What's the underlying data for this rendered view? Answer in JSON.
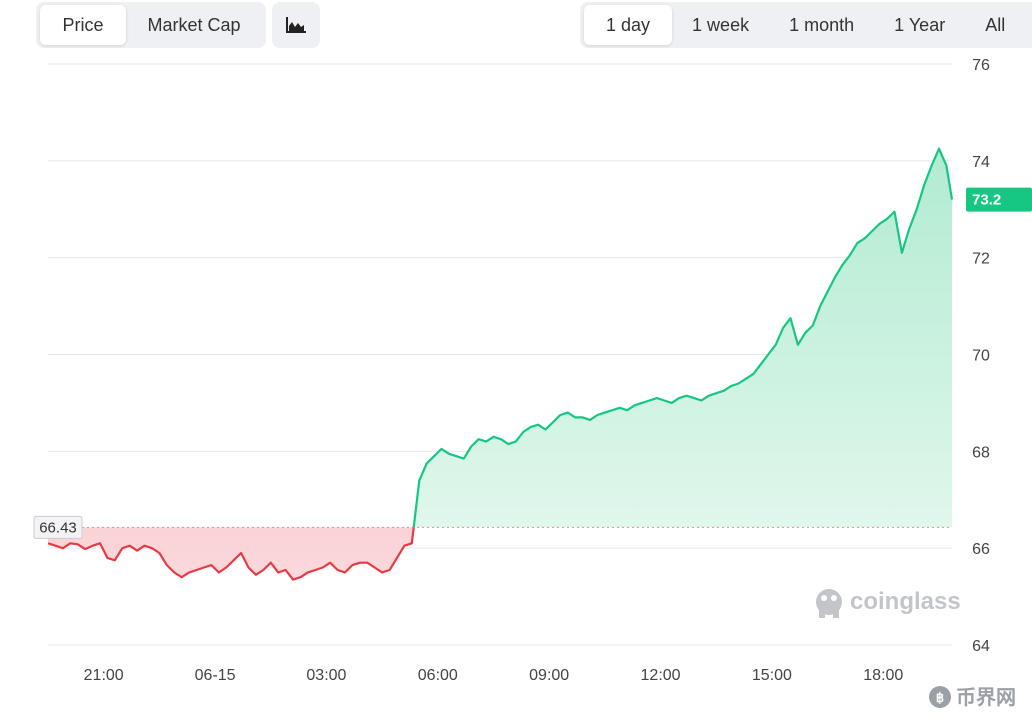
{
  "toolbar": {
    "type_options": [
      "Price",
      "Market Cap"
    ],
    "type_selected": "Price",
    "chart_icon": "area-chart-icon",
    "ranges": [
      "1 day",
      "1 week",
      "1 month",
      "1 Year",
      "All"
    ],
    "range_selected": "1 day"
  },
  "watermark": "coinglass",
  "watermark_icon": "coinglass-logo-icon",
  "corner_logo": "币界网",
  "colors": {
    "up": "#16c784",
    "down": "#ea3943",
    "up_fill": "#cdf3e2",
    "down_fill": "#f7a8ae",
    "grid": "#e6e8eb",
    "baseline": "#e88a90"
  },
  "chart_data": {
    "type": "area",
    "title": "",
    "xlabel": "",
    "ylabel": "",
    "ylim": [
      64,
      76
    ],
    "y_ticks": [
      76,
      74,
      72,
      70,
      68,
      66,
      64
    ],
    "x_ticks": [
      "21:00",
      "06-15",
      "03:00",
      "06:00",
      "09:00",
      "12:00",
      "15:00",
      "18:00"
    ],
    "x_tick_hours": [
      21,
      24,
      27,
      30,
      33,
      36,
      39,
      42
    ],
    "baseline": 66.43,
    "baseline_label": "66.43",
    "last_value": 73.2,
    "last_label": "73.2",
    "grid": true,
    "series": [
      {
        "x": [
          19.5,
          19.7,
          19.9,
          20.1,
          20.3,
          20.5,
          20.7,
          20.9,
          21.1,
          21.3,
          21.5,
          21.7,
          21.9,
          22.1,
          22.3,
          22.5,
          22.7,
          22.9,
          23.1,
          23.3,
          23.5,
          23.7,
          23.9,
          24.1,
          24.3,
          24.5,
          24.7,
          24.9,
          25.1,
          25.3,
          25.5,
          25.7,
          25.9,
          26.1,
          26.3,
          26.5,
          26.7,
          26.9,
          27.1,
          27.3,
          27.5,
          27.7,
          27.9,
          28.1,
          28.3,
          28.5,
          28.7,
          28.9,
          29.1,
          29.3,
          29.5,
          29.7,
          29.9,
          30.1,
          30.3,
          30.5,
          30.7,
          30.9,
          31.1,
          31.3,
          31.5,
          31.7,
          31.9,
          32.1,
          32.3,
          32.5,
          32.7,
          32.9,
          33.1,
          33.3,
          33.5,
          33.7,
          33.9,
          34.1,
          34.3,
          34.5,
          34.7,
          34.9,
          35.1,
          35.3,
          35.5,
          35.7,
          35.9,
          36.1,
          36.3,
          36.5,
          36.7,
          36.9,
          37.1,
          37.3,
          37.5,
          37.7,
          37.9,
          38.1,
          38.3,
          38.5,
          38.7,
          38.9,
          39.1,
          39.3,
          39.5,
          39.7,
          39.9,
          40.1,
          40.3,
          40.5,
          40.7,
          40.9,
          41.1,
          41.3,
          41.5,
          41.7,
          41.9,
          42.1,
          42.3,
          42.5,
          42.7,
          42.9,
          43.1,
          43.3,
          43.5,
          43.7,
          43.85
        ],
        "values": [
          66.1,
          66.05,
          66.0,
          66.1,
          66.08,
          65.98,
          66.05,
          66.1,
          65.8,
          65.75,
          66.0,
          66.05,
          65.95,
          66.05,
          66.0,
          65.9,
          65.65,
          65.5,
          65.4,
          65.5,
          65.55,
          65.6,
          65.65,
          65.5,
          65.6,
          65.75,
          65.9,
          65.6,
          65.45,
          65.55,
          65.7,
          65.5,
          65.55,
          65.35,
          65.4,
          65.5,
          65.55,
          65.6,
          65.7,
          65.55,
          65.5,
          65.65,
          65.7,
          65.7,
          65.6,
          65.5,
          65.55,
          65.8,
          66.05,
          66.1,
          67.4,
          67.75,
          67.9,
          68.05,
          67.95,
          67.9,
          67.85,
          68.1,
          68.25,
          68.2,
          68.3,
          68.25,
          68.15,
          68.2,
          68.4,
          68.5,
          68.55,
          68.45,
          68.6,
          68.75,
          68.8,
          68.7,
          68.7,
          68.65,
          68.75,
          68.8,
          68.85,
          68.9,
          68.85,
          68.95,
          69.0,
          69.05,
          69.1,
          69.05,
          69.0,
          69.1,
          69.15,
          69.1,
          69.05,
          69.15,
          69.2,
          69.25,
          69.35,
          69.4,
          69.5,
          69.6,
          69.8,
          70.0,
          70.2,
          70.55,
          70.75,
          70.2,
          70.45,
          70.6,
          71.0,
          71.3,
          71.6,
          71.85,
          72.05,
          72.3,
          72.4,
          72.55,
          72.7,
          72.8,
          72.95,
          72.1,
          72.6,
          73.0,
          73.5,
          73.9,
          74.25,
          73.9,
          73.2
        ]
      }
    ]
  }
}
